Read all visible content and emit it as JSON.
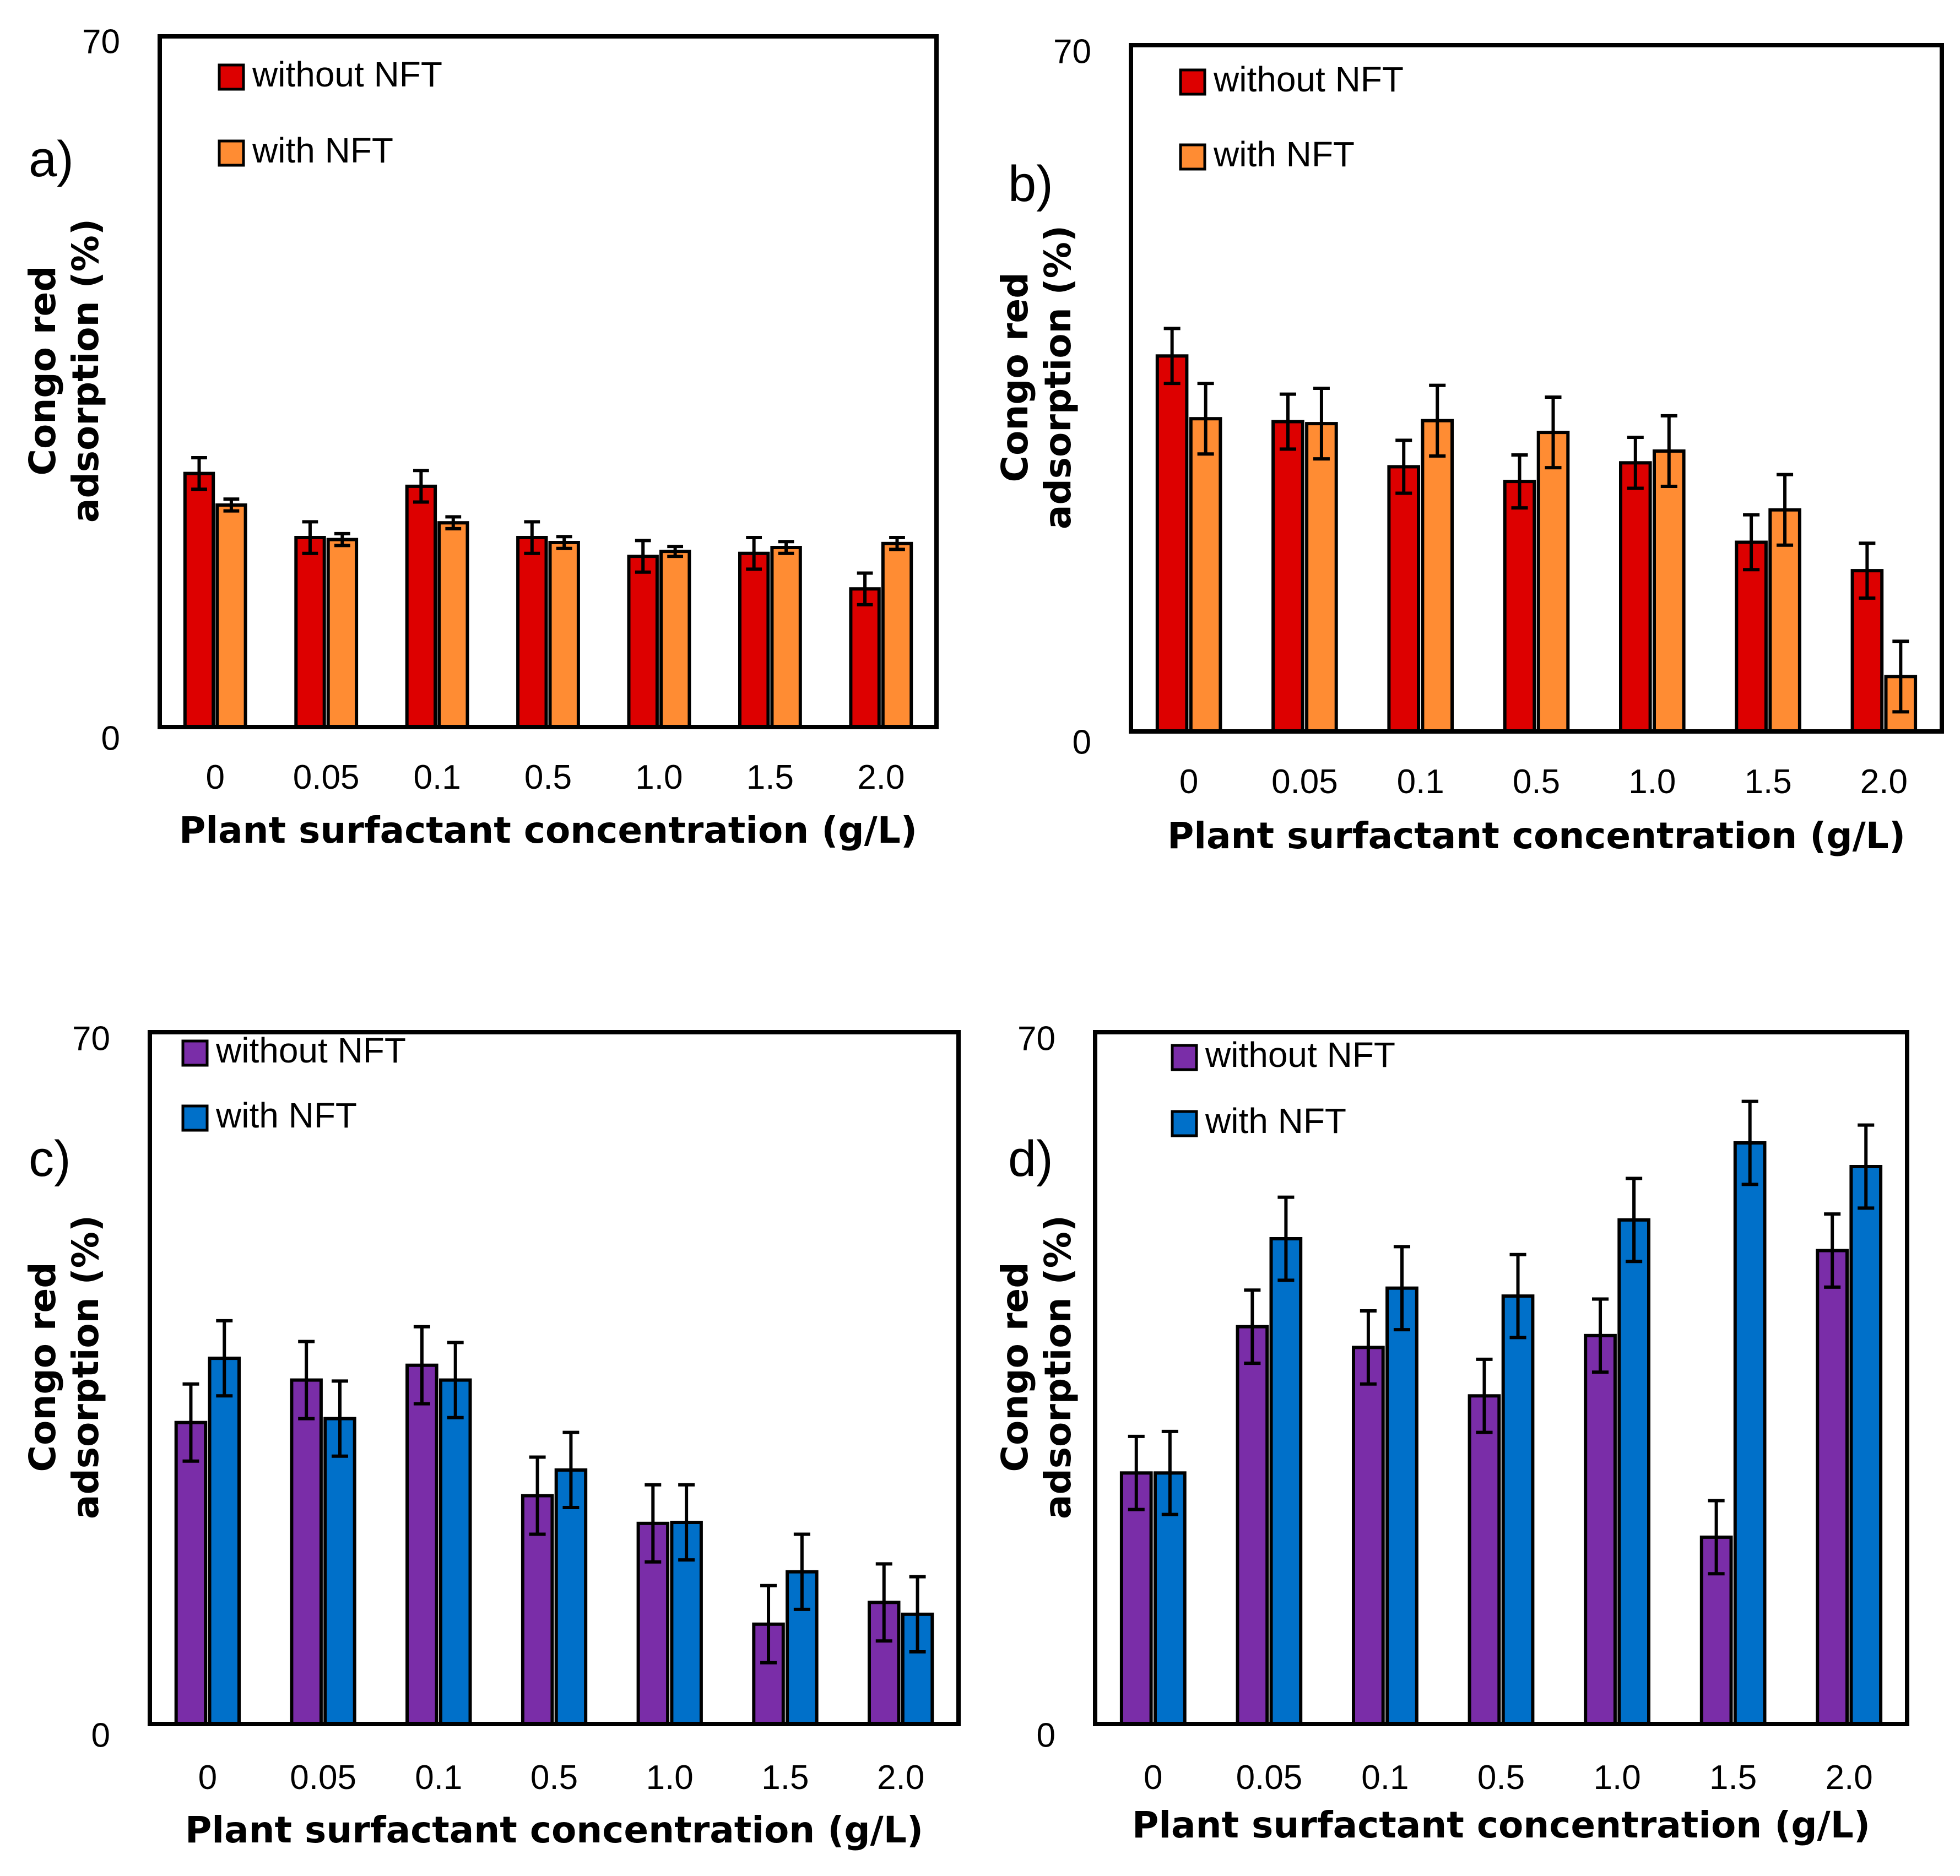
{
  "chart_data": [
    {
      "panel": "a)",
      "type": "bar",
      "categories": [
        "0",
        "0.05",
        "0.1",
        "0.5",
        "1.0",
        "1.5",
        "2.0"
      ],
      "xlabel": "Plant surfactant concentration (g/L)",
      "ylabel": [
        "Congo red",
        "adsorption (%)"
      ],
      "ylim": [
        0,
        70
      ],
      "yticks": [
        "0",
        "70"
      ],
      "series": [
        {
          "name": "without NFT",
          "color": "#dd0000",
          "values": [
            25.7,
            19.2,
            24.4,
            19.2,
            17.3,
            17.6,
            14.0
          ],
          "errors": [
            1.6,
            1.6,
            1.6,
            1.6,
            1.6,
            1.6,
            1.6
          ]
        },
        {
          "name": "with NFT",
          "color": "#ff8c33",
          "values": [
            22.5,
            19.0,
            20.7,
            18.7,
            17.8,
            18.2,
            18.6
          ],
          "errors": [
            0.6,
            0.6,
            0.6,
            0.6,
            0.5,
            0.6,
            0.6
          ]
        }
      ]
    },
    {
      "panel": "b)",
      "type": "bar",
      "categories": [
        "0",
        "0.05",
        "0.1",
        "0.5",
        "1.0",
        "1.5",
        "2.0"
      ],
      "xlabel": "Plant surfactant concentration (g/L)",
      "ylabel": [
        "Congo red",
        "adsorption (%)"
      ],
      "ylim": [
        0,
        70
      ],
      "yticks": [
        "0",
        "70"
      ],
      "series": [
        {
          "name": "without NFT",
          "color": "#dd0000",
          "values": [
            38.3,
            31.6,
            27.0,
            25.5,
            27.4,
            19.3,
            16.4
          ],
          "errors": [
            2.8,
            2.8,
            2.7,
            2.7,
            2.6,
            2.8,
            2.8
          ]
        },
        {
          "name": "with NFT",
          "color": "#ff8c33",
          "values": [
            31.9,
            31.4,
            31.7,
            30.5,
            28.6,
            22.6,
            5.6
          ],
          "errors": [
            3.6,
            3.6,
            3.6,
            3.6,
            3.6,
            3.6,
            3.6
          ]
        }
      ]
    },
    {
      "panel": "c)",
      "type": "bar",
      "categories": [
        "0",
        "0.05",
        "0.1",
        "0.5",
        "1.0",
        "1.5",
        "2.0"
      ],
      "xlabel": "Plant surfactant concentration (g/L)",
      "ylabel": [
        "Congo red",
        "adsorption (%)"
      ],
      "ylim": [
        0,
        70
      ],
      "yticks": [
        "0",
        "70"
      ],
      "series": [
        {
          "name": "without NFT",
          "color": "#7a2da8",
          "values": [
            30.5,
            34.8,
            36.3,
            23.1,
            20.3,
            10.1,
            12.3
          ],
          "errors": [
            3.9,
            3.9,
            3.9,
            3.9,
            3.9,
            3.9,
            3.9
          ]
        },
        {
          "name": "with NFT",
          "color": "#0070c9",
          "values": [
            37.0,
            30.9,
            34.8,
            25.7,
            20.4,
            15.4,
            11.1
          ],
          "errors": [
            3.8,
            3.8,
            3.8,
            3.8,
            3.8,
            3.8,
            3.8
          ]
        }
      ]
    },
    {
      "panel": "d)",
      "type": "bar",
      "categories": [
        "0",
        "0.05",
        "0.1",
        "0.5",
        "1.0",
        "1.5",
        "2.0"
      ],
      "xlabel": "Plant surfactant concentration (g/L)",
      "ylabel": [
        "Congo red",
        "adsorption (%)"
      ],
      "ylim": [
        0,
        70
      ],
      "yticks": [
        "0",
        "70"
      ],
      "series": [
        {
          "name": "without NFT",
          "color": "#7a2da8",
          "values": [
            25.4,
            40.2,
            38.1,
            33.2,
            39.3,
            18.9,
            47.9
          ],
          "errors": [
            3.7,
            3.7,
            3.7,
            3.7,
            3.7,
            3.7,
            3.7
          ]
        },
        {
          "name": "with NFT",
          "color": "#0070c9",
          "values": [
            25.4,
            49.1,
            44.1,
            43.3,
            51.0,
            58.8,
            56.4
          ],
          "errors": [
            4.2,
            4.2,
            4.2,
            4.2,
            4.2,
            4.2,
            4.2
          ]
        }
      ]
    }
  ]
}
